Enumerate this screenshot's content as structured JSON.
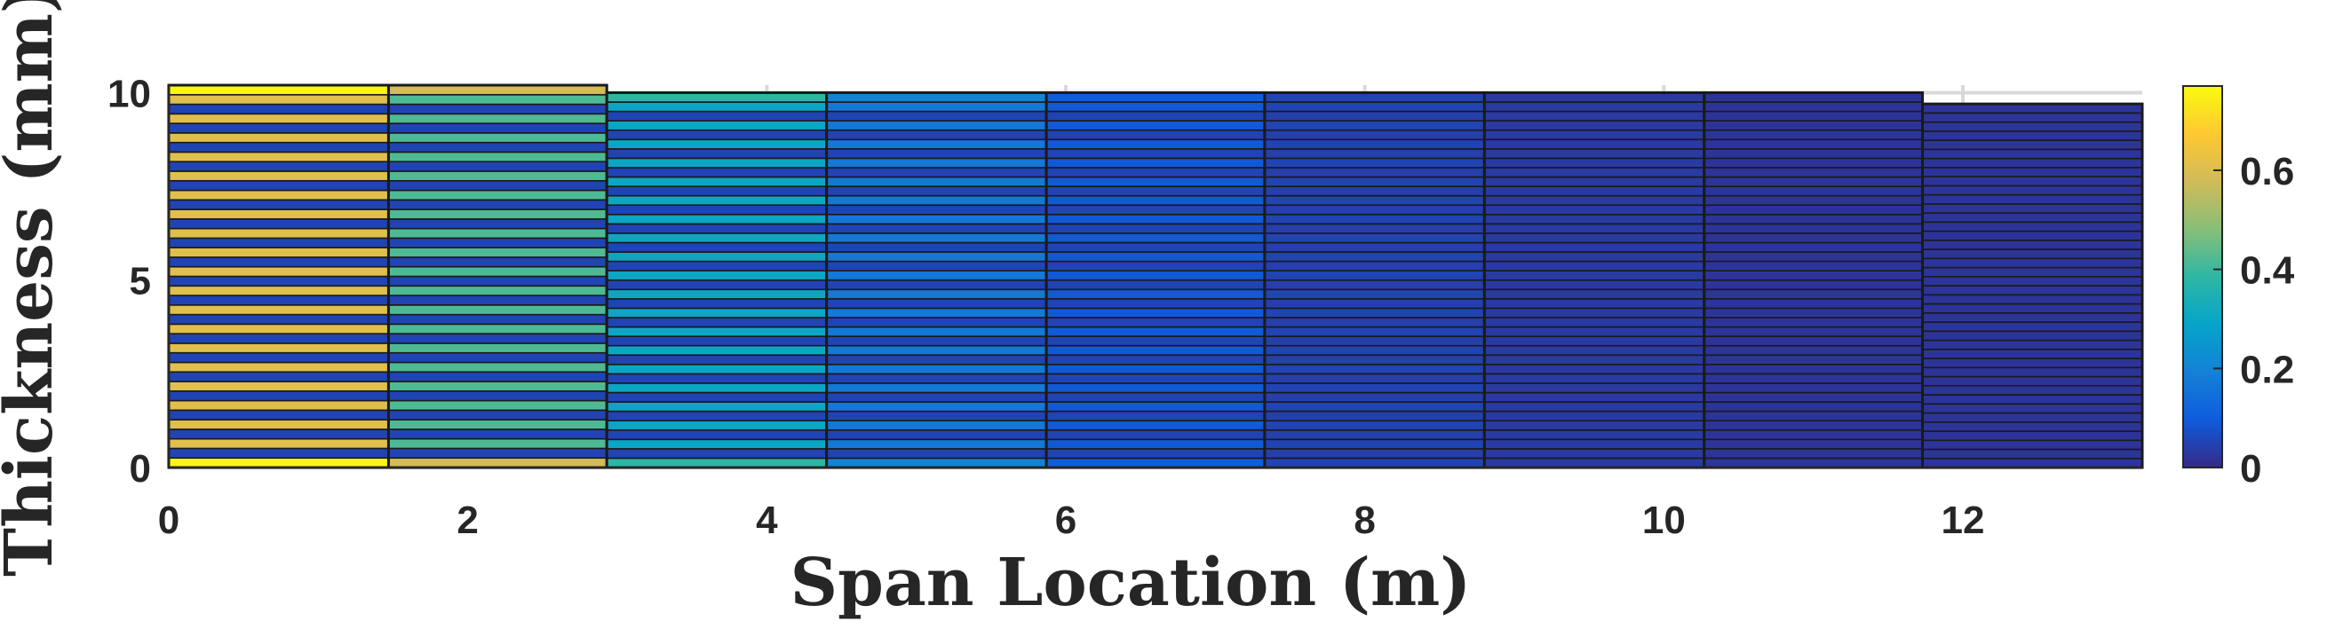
{
  "chart_data": {
    "type": "heatmap",
    "xlabel": "Span Location (m)",
    "ylabel": "Thickness (mm)",
    "xlim": [
      0,
      13.2
    ],
    "ylim": [
      0,
      10.2
    ],
    "xticks": [
      "0",
      "2",
      "4",
      "6",
      "8",
      "10",
      "12"
    ],
    "xtick_values": [
      0,
      2,
      4,
      6,
      8,
      10,
      12
    ],
    "yticks": [
      "0",
      "5",
      "10"
    ],
    "ytick_values": [
      0,
      5,
      10
    ],
    "colorbar": {
      "ticks": [
        "0",
        "0.2",
        "0.4",
        "0.6"
      ],
      "tick_values": [
        0,
        0.2,
        0.4,
        0.6
      ],
      "range": [
        0,
        0.77
      ],
      "colormap": "parula"
    },
    "grid": true,
    "sections": [
      {
        "x_start": 0.0,
        "x_end": 1.47,
        "thickness": 10.2,
        "value_even": 0.76,
        "value_odd": 0.05,
        "value_mid": 0.61
      },
      {
        "x_start": 1.47,
        "x_end": 2.93,
        "thickness": 10.2,
        "value_even": 0.58,
        "value_odd": 0.05,
        "value_mid": 0.42
      },
      {
        "x_start": 2.93,
        "x_end": 4.4,
        "thickness": 10.0,
        "value_even": 0.38,
        "value_odd": 0.05,
        "value_mid": 0.3
      },
      {
        "x_start": 4.4,
        "x_end": 5.87,
        "thickness": 10.0,
        "value_even": 0.2,
        "value_odd": 0.05,
        "value_mid": 0.17
      },
      {
        "x_start": 5.87,
        "x_end": 7.33,
        "thickness": 10.0,
        "value_even": 0.1,
        "value_odd": 0.05,
        "value_mid": 0.09
      },
      {
        "x_start": 7.33,
        "x_end": 8.8,
        "thickness": 10.0,
        "value_even": 0.05,
        "value_odd": 0.04,
        "value_mid": 0.05
      },
      {
        "x_start": 8.8,
        "x_end": 10.27,
        "thickness": 10.0,
        "value_even": 0.03,
        "value_odd": 0.03,
        "value_mid": 0.03
      },
      {
        "x_start": 10.27,
        "x_end": 11.73,
        "thickness": 10.0,
        "value_even": 0.02,
        "value_odd": 0.02,
        "value_mid": 0.02
      },
      {
        "x_start": 11.73,
        "x_end": 13.2,
        "thickness": 9.7,
        "value_even": 0.02,
        "value_odd": 0.02,
        "value_mid": 0.02
      }
    ],
    "layers_per_section": 40
  },
  "colors": {
    "text": "#262626",
    "cell_edge": "#1a1a1a",
    "grid": "#d9d9d9"
  }
}
